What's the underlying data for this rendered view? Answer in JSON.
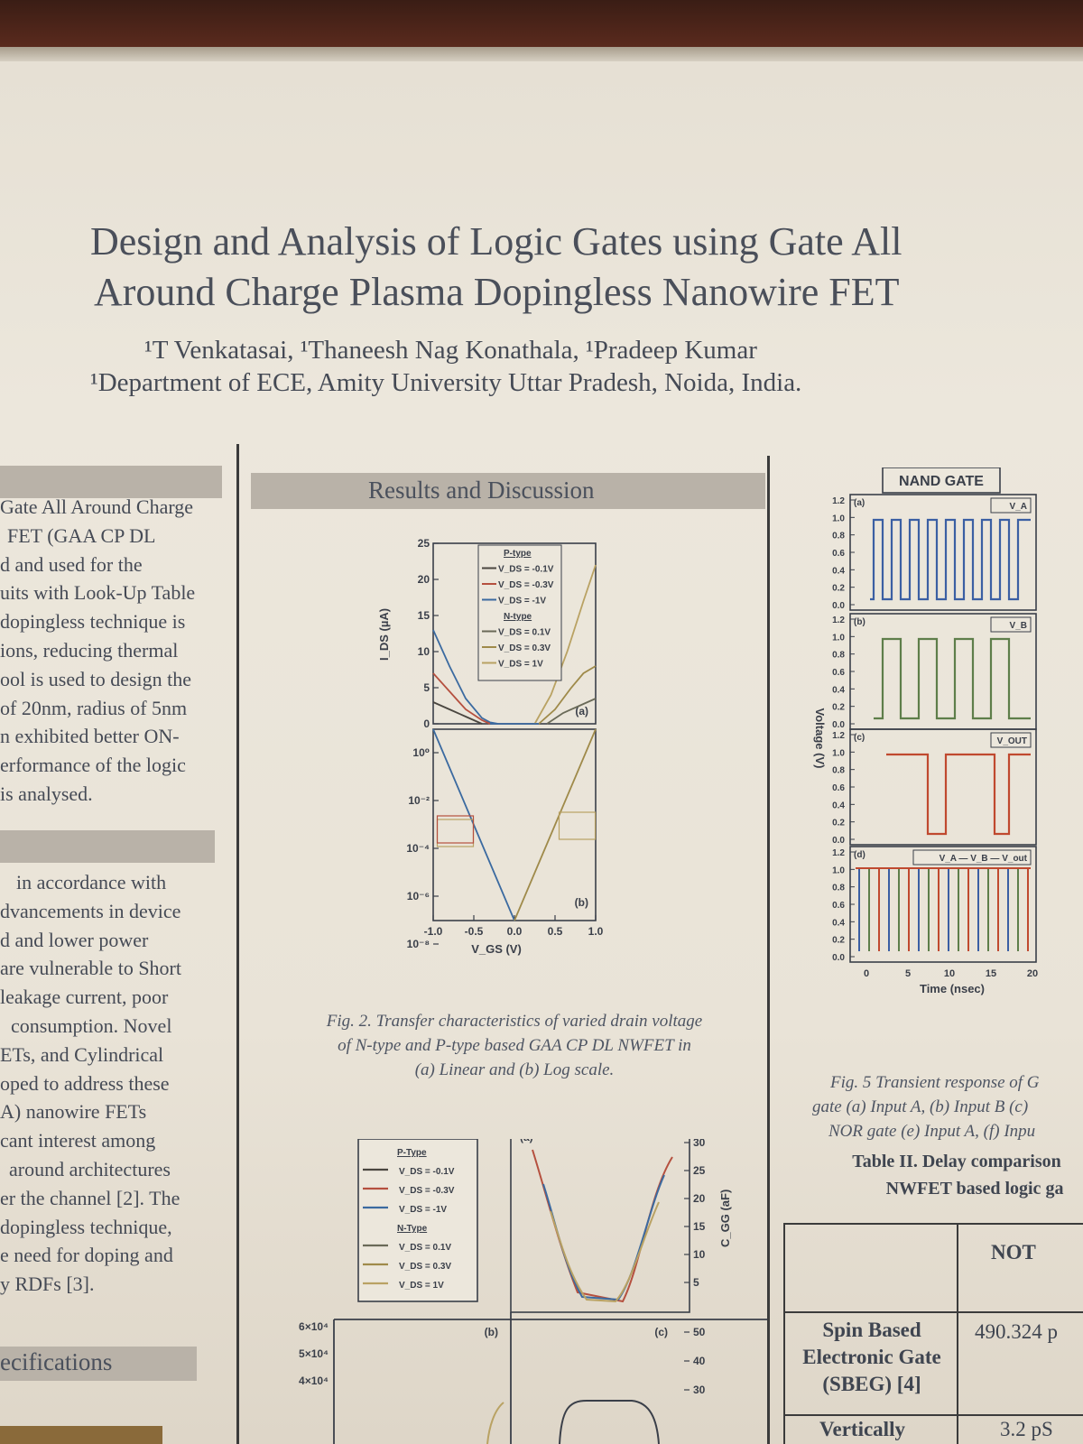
{
  "title_lines": [
    "Design and Analysis of Logic Gates using Gate All",
    "Around Charge Plasma Dopingless Nanowire FET"
  ],
  "authors": "¹T Venkatasai, ¹Thaneesh Nag Konathala, ¹Pradeep Kumar",
  "affiliation": "¹Department of ECE, Amity University Uttar Pradesh, Noida, India.",
  "left_column": {
    "para1": [
      "Gate All Around Charge",
      "FET (GAA CP DL",
      "d and used for the",
      "uits with Look-Up Table",
      "dopingless technique is",
      "ions, reducing thermal",
      "ool is used to design the",
      "of 20nm, radius of 5nm",
      "n exhibited better ON-",
      "erformance of the logic",
      "is analysed."
    ],
    "para2": [
      "in accordance with",
      "dvancements in device",
      "d and lower power",
      "are vulnerable to Short",
      "leakage current, poor",
      "consumption. Novel",
      "ETs, and Cylindrical",
      "oped to address these",
      "A) nanowire FETs",
      "cant interest among",
      "around architectures",
      "er the channel [2]. The",
      "dopingless technique,",
      "e need for doping and",
      "y RDFs [3]."
    ],
    "section_tail": "ecifications"
  },
  "middle": {
    "section_title": "Results and Discussion",
    "fig2_caption": [
      "Fig. 2. Transfer characteristics of varied drain voltage",
      "of N-type and P-type based GAA CP DL NWFET in",
      "(a) Linear and (b) Log scale."
    ]
  },
  "colors": {
    "p1": "#4a4640",
    "p2": "#b5503f",
    "p3": "#3b6aa0",
    "n1": "#6a6a58",
    "n2": "#9f8a4a",
    "n3": "#b9a263",
    "green": "#5e7e4a",
    "red": "#c0492f",
    "blue": "#3b5fa3"
  },
  "chart_data": [
    {
      "type": "line",
      "id": "fig2a",
      "panel_label": "(a)",
      "ylabel": "I_DS (µA)",
      "yticks": [
        "25",
        "20",
        "15",
        "10",
        "5",
        "0"
      ],
      "ylim": [
        0,
        25
      ],
      "xlim": [
        -1.0,
        1.0
      ],
      "legend": {
        "p_title": "P-type",
        "p_items": [
          "V_DS = -0.1V",
          "V_DS = -0.3V",
          "V_DS = -1V"
        ],
        "n_title": "N-type",
        "n_items": [
          "V_DS = 0.1V",
          "V_DS = 0.3V",
          "V_DS = 1V"
        ]
      },
      "series": [
        {
          "name": "V_DS = -1V",
          "x": [
            -1.0,
            -0.8,
            -0.6,
            -0.4,
            -0.3,
            -0.2
          ],
          "y": [
            13,
            8,
            3.5,
            0.8,
            0.2,
            0
          ]
        },
        {
          "name": "V_DS = -0.3V",
          "x": [
            -1.0,
            -0.8,
            -0.6,
            -0.4,
            -0.3
          ],
          "y": [
            7,
            4.5,
            2,
            0.5,
            0
          ]
        },
        {
          "name": "V_DS = -0.1V",
          "x": [
            -1.0,
            -0.8,
            -0.6,
            -0.4
          ],
          "y": [
            3,
            2,
            1,
            0
          ]
        },
        {
          "name": "V_DS = 0.1V",
          "x": [
            0.4,
            0.6,
            0.8,
            1.0
          ],
          "y": [
            0,
            1.5,
            2.5,
            3.5
          ]
        },
        {
          "name": "V_DS = 0.3V",
          "x": [
            0.3,
            0.5,
            0.7,
            0.85,
            1.0
          ],
          "y": [
            0,
            2,
            5,
            7,
            8
          ]
        },
        {
          "name": "V_DS = 1V",
          "x": [
            0.25,
            0.45,
            0.65,
            0.85,
            1.0
          ],
          "y": [
            0,
            4,
            10,
            17,
            22
          ]
        }
      ]
    },
    {
      "type": "line",
      "id": "fig2b",
      "panel_label": "(b)",
      "xlabel": "V_GS (V)",
      "xticks": [
        "-1.0",
        "-0.5",
        "0.0",
        "0.5",
        "1.0"
      ],
      "yticks": [
        "10⁰",
        "10⁻²",
        "10⁻⁴",
        "10⁻⁶",
        "10⁻⁸"
      ],
      "xlim": [
        -1.0,
        1.0
      ],
      "series": [
        {
          "name": "P-type",
          "x": [
            -1.0,
            -0.5,
            0.0
          ],
          "y": [
            1,
            0.0001,
            1e-08
          ]
        },
        {
          "name": "N-type",
          "x": [
            0.0,
            0.5,
            1.0
          ],
          "y": [
            1e-08,
            0.0001,
            1
          ]
        }
      ]
    },
    {
      "type": "line",
      "id": "fig3",
      "panel_labels": [
        "(a)",
        "(b)",
        "(c)"
      ],
      "ylabel": "C_GG (aF)",
      "yticks": [
        "30",
        "25",
        "20",
        "15",
        "10",
        "5"
      ],
      "yticks_lower": [
        "50",
        "40",
        "30"
      ],
      "left_yticks": [
        "6×10⁴",
        "5×10⁴",
        "4×10⁴"
      ],
      "legend": {
        "p_title": "P-Type",
        "p_items": [
          "V_DS = -0.1V",
          "V_DS = -0.3V",
          "V_DS = -1V"
        ],
        "n_title": "N-Type",
        "n_items": [
          "V_DS = 0.1V",
          "V_DS = 0.3V",
          "V_DS = 1V"
        ]
      }
    },
    {
      "type": "line",
      "id": "fig5",
      "title": "NAND GATE",
      "ylabel": "Voltage (V)",
      "xlabel": "Time (nsec)",
      "xticks": [
        "0",
        "5",
        "10",
        "15",
        "20"
      ],
      "yticks": [
        "1.2",
        "1.0",
        "0.8",
        "0.6",
        "0.4",
        "0.2",
        "0.0"
      ],
      "panels": [
        {
          "label": "(a)",
          "legend": "V_A"
        },
        {
          "label": "(b)",
          "legend": "V_B"
        },
        {
          "label": "(c)",
          "legend": "V_OUT"
        },
        {
          "label": "(d)",
          "legend": "V_A — V_B — V_out"
        }
      ]
    }
  ],
  "right": {
    "fig5_caption": [
      "Fig. 5 Transient response of G",
      "gate (a) Input A, (b) Input B (c)",
      "NOR gate (e) Input A, (f) Inpu"
    ],
    "table_caption": [
      "Table II. Delay comparison",
      "NWFET based logic ga"
    ],
    "table": {
      "header": "NOT",
      "row1_name": [
        "Spin Based",
        "Electronic Gate",
        "(SBEG) [4]"
      ],
      "row1_val": "490.324 p",
      "row2_name": "Vertically",
      "row2_val": "3.2 pS"
    }
  }
}
